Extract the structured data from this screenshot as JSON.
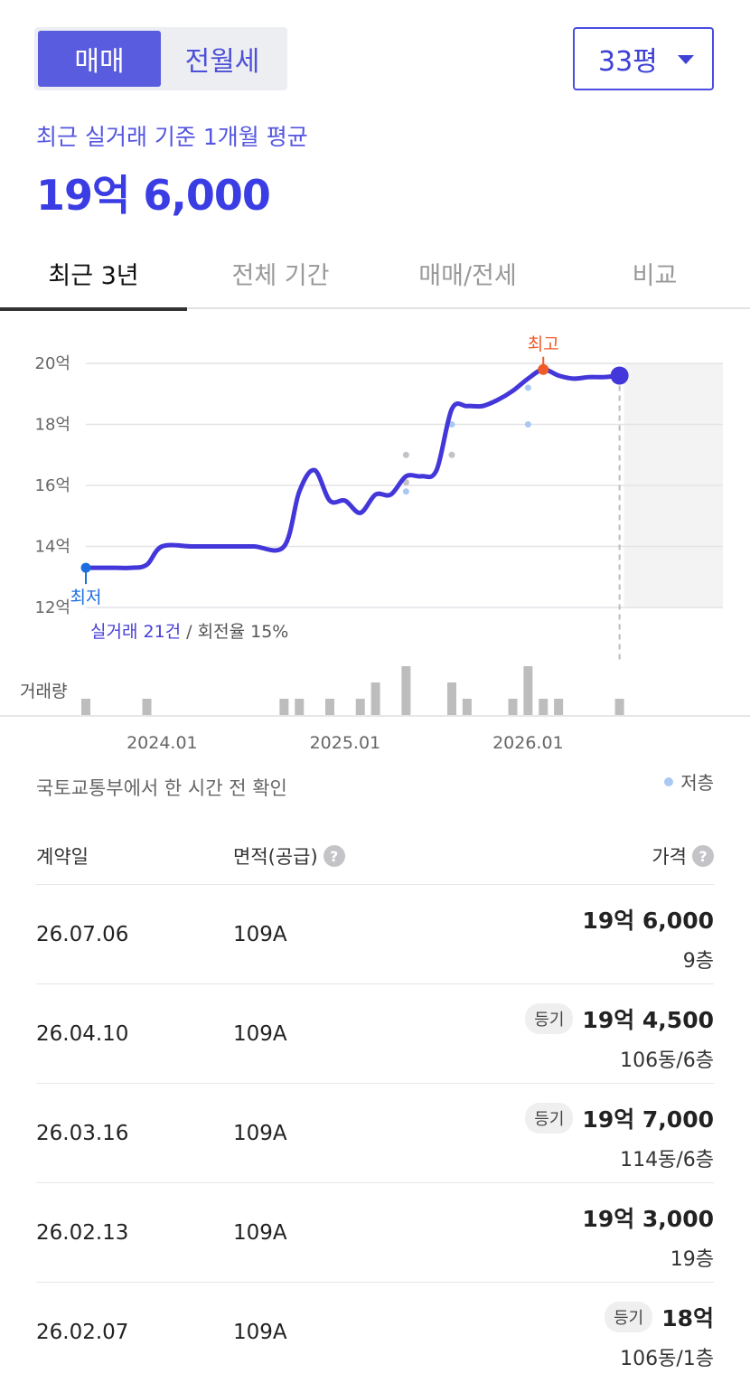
{
  "deal_type": {
    "active": "매매",
    "inactive": "전월세"
  },
  "size_select": {
    "label": "33평"
  },
  "average": {
    "label": "최근 실거래 기준 1개월 평균",
    "value": "19억 6,000"
  },
  "tabs": [
    "최근 3년",
    "전체 기간",
    "매매/전세",
    "비교"
  ],
  "chart_data": {
    "type": "line",
    "y_ticks": [
      "20억",
      "18억",
      "16억",
      "14억",
      "12억"
    ],
    "x_ticks": [
      "2024.01",
      "2025.01",
      "2026.01"
    ],
    "ylim": [
      12,
      20
    ],
    "series": [
      {
        "x": [
          "2023-08",
          "2023-09",
          "2023-10",
          "2023-11",
          "2023-12",
          "2024-01",
          "2024-03",
          "2024-05",
          "2024-07",
          "2024-09",
          "2024-10",
          "2024-11",
          "2024-12",
          "2025-01",
          "2025-02",
          "2025-03",
          "2025-04",
          "2025-05",
          "2025-06",
          "2025-07",
          "2025-08",
          "2025-09",
          "2025-10",
          "2025-11",
          "2025-12",
          "2026-01",
          "2026-02",
          "2026-03",
          "2026-04",
          "2026-05",
          "2026-06",
          "2026-07"
        ],
        "values": [
          13.3,
          13.3,
          13.3,
          13.3,
          13.4,
          14.0,
          14.0,
          14.0,
          14.0,
          14.0,
          15.8,
          16.5,
          15.5,
          15.5,
          15.1,
          15.7,
          15.7,
          16.3,
          16.3,
          16.5,
          18.5,
          18.6,
          18.6,
          18.8,
          19.1,
          19.5,
          19.8,
          19.6,
          19.5,
          19.55,
          19.55,
          19.6
        ]
      }
    ],
    "markers": {
      "high_label": "최고",
      "low_label": "최저"
    },
    "low_floor_points": [
      {
        "x": "2025-05",
        "y": 15.8
      },
      {
        "x": "2025-08",
        "y": 18.0
      },
      {
        "x": "2026-01",
        "y": 18.0
      },
      {
        "x": "2026-01",
        "y": 19.2
      }
    ],
    "other_points": [
      {
        "x": "2025-05",
        "y": 17.0
      },
      {
        "x": "2025-05",
        "y": 16.1
      },
      {
        "x": "2025-08",
        "y": 17.0
      }
    ],
    "summary": {
      "count": "실거래 21건",
      "turnover": " / 회전율 15%"
    },
    "volume_label": "거래량",
    "volume": [
      {
        "x": "2023-08",
        "v": 1
      },
      {
        "x": "2023-12",
        "v": 1
      },
      {
        "x": "2024-09",
        "v": 1
      },
      {
        "x": "2024-10",
        "v": 1
      },
      {
        "x": "2024-12",
        "v": 1
      },
      {
        "x": "2025-02",
        "v": 1
      },
      {
        "x": "2025-03",
        "v": 2
      },
      {
        "x": "2025-05",
        "v": 3
      },
      {
        "x": "2025-08",
        "v": 2
      },
      {
        "x": "2025-09",
        "v": 1
      },
      {
        "x": "2025-12",
        "v": 1
      },
      {
        "x": "2026-01",
        "v": 3
      },
      {
        "x": "2026-02",
        "v": 1
      },
      {
        "x": "2026-03",
        "v": 1
      },
      {
        "x": "2026-07",
        "v": 1
      }
    ],
    "colors": {
      "line": "#4337d9",
      "high": "#f05a28",
      "low": "#1d6fe0",
      "low_floor_dot": "#a9c9f2",
      "other_dot": "#c2c2c8",
      "volume": "#bdbdbd",
      "future_bg": "#f3f3f3"
    }
  },
  "source": "국토교통부에서 한 시간 전 확인",
  "legend_low_floor": "저층",
  "table": {
    "headers": {
      "date": "계약일",
      "area": "면적(공급)",
      "price": "가격"
    },
    "help_icon": "?",
    "rows": [
      {
        "date": "26.07.06",
        "area": "109A",
        "badge": "",
        "price": "19억 6,000",
        "floor": "9층"
      },
      {
        "date": "26.04.10",
        "area": "109A",
        "badge": "등기",
        "price": "19억 4,500",
        "floor": "106동/6층"
      },
      {
        "date": "26.03.16",
        "area": "109A",
        "badge": "등기",
        "price": "19억 7,000",
        "floor": "114동/6층"
      },
      {
        "date": "26.02.13",
        "area": "109A",
        "badge": "",
        "price": "19억 3,000",
        "floor": "19층"
      },
      {
        "date": "26.02.07",
        "area": "109A",
        "badge": "등기",
        "price": "18억",
        "floor": "106동/1층"
      }
    ]
  }
}
